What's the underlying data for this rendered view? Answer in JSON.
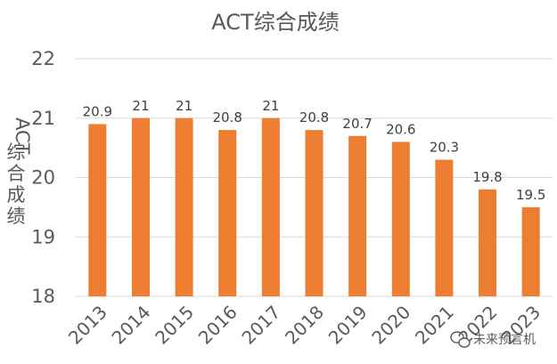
{
  "chart_data": {
    "type": "bar",
    "title": "ACT综合成绩",
    "ylabel": "ACT综合成绩",
    "xlabel": "",
    "categories": [
      "2013",
      "2014",
      "2015",
      "2016",
      "2017",
      "2018",
      "2019",
      "2020",
      "2021",
      "2022",
      "2023"
    ],
    "values": [
      20.9,
      21,
      21,
      20.8,
      21,
      20.8,
      20.7,
      20.6,
      20.3,
      19.8,
      19.5
    ],
    "value_labels": [
      "20.9",
      "21",
      "21",
      "20.8",
      "21",
      "20.8",
      "20.7",
      "20.6",
      "20.3",
      "19.8",
      "19.5"
    ],
    "ylim": [
      18,
      22
    ],
    "yticks": [
      "18",
      "19",
      "20",
      "21",
      "22"
    ],
    "grid": true,
    "bar_color": "#ED7D31"
  },
  "watermark": {
    "text": "未来预言机",
    "icon": "wechat-icon"
  }
}
